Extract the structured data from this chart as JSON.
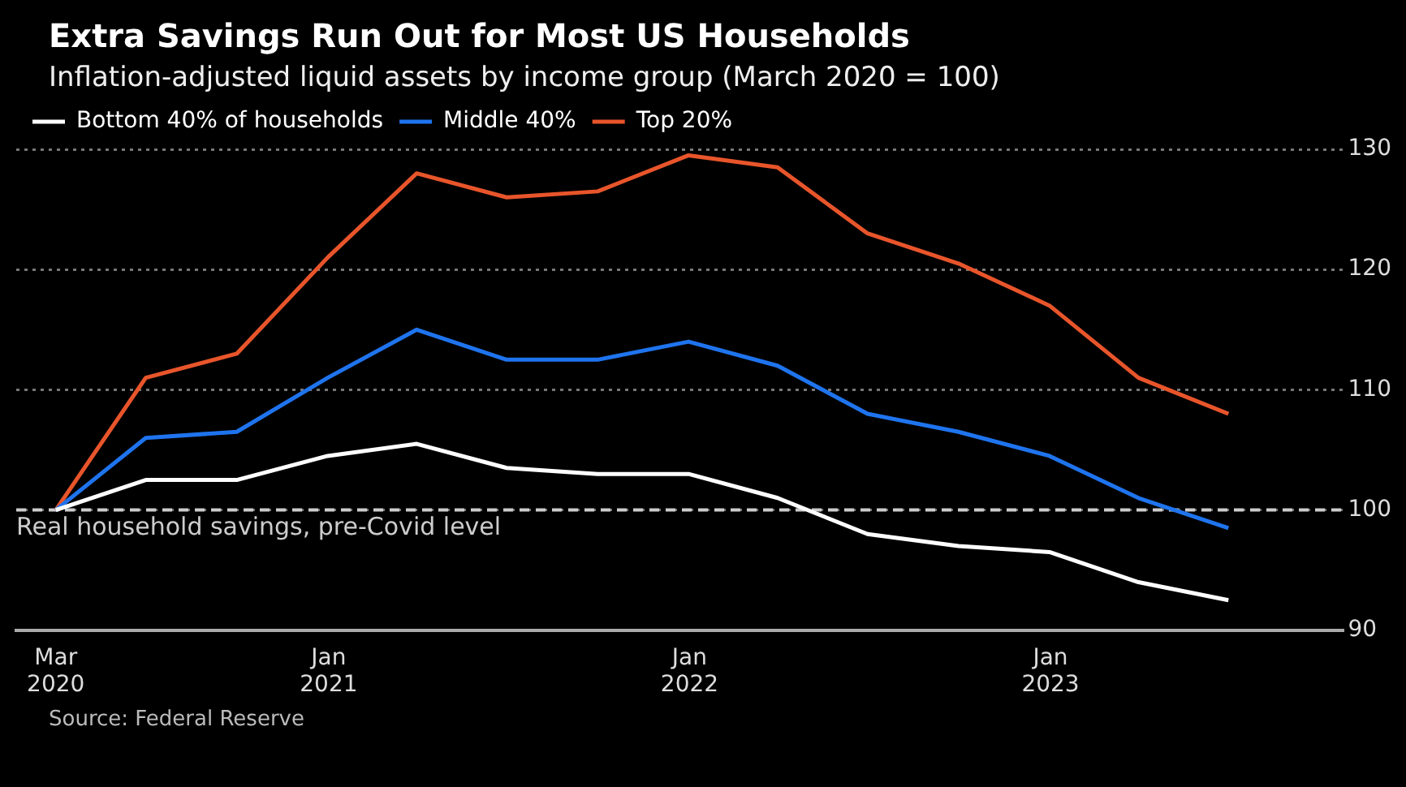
{
  "chart_data": {
    "type": "line",
    "title": "Extra Savings Run Out for Most US Households",
    "subtitle": "Inflation-adjusted liquid assets by income group (March 2020 = 100)",
    "x": [
      "2020-03-31",
      "2020-06-30",
      "2020-09-30",
      "2020-12-31",
      "2021-03-31",
      "2021-06-30",
      "2021-09-30",
      "2021-12-31",
      "2022-03-31",
      "2022-06-30",
      "2022-09-30",
      "2022-12-31",
      "2023-03-31",
      "2023-06-30"
    ],
    "series": [
      {
        "name": "Bottom 40% of households",
        "color": "#ffffff",
        "values": [
          100,
          102.5,
          102.5,
          104.5,
          105.5,
          103.5,
          103,
          103,
          101,
          98,
          97,
          96.5,
          94,
          92.5
        ]
      },
      {
        "name": "Middle 40%",
        "color": "#1f74ee",
        "values": [
          100,
          106,
          106.5,
          111,
          115,
          112.5,
          112.5,
          114,
          112,
          108,
          106.5,
          104.5,
          101,
          98.5
        ]
      },
      {
        "name": "Top 20%",
        "color": "#e8552b",
        "values": [
          100,
          111,
          113,
          121,
          128,
          126,
          126.5,
          129.5,
          128.5,
          123,
          120.5,
          117,
          111,
          108
        ]
      }
    ],
    "xlim": [
      "2020-02-20",
      "2023-10-24"
    ],
    "xticks": [
      {
        "value": "2020-03-31",
        "label": "Mar 2020"
      },
      {
        "value": "2021-01-01",
        "label": "Jan 2021"
      },
      {
        "value": "2022-01-01",
        "label": "Jan 2022"
      },
      {
        "value": "2023-01-01",
        "label": "Jan 2023"
      }
    ],
    "ylim": [
      90,
      130
    ],
    "yticks": [
      90,
      100,
      110,
      120,
      130
    ],
    "grid": "y",
    "legend": "top left",
    "marker": "none",
    "line_style": "solid",
    "ref_lines": [
      {
        "axis": "y",
        "value": 100,
        "label": "Real household savings, pre-Covid level",
        "color": "#cccccc",
        "line_style": "dashed"
      }
    ],
    "annotations": [
      "Source: Federal Reserve"
    ]
  }
}
